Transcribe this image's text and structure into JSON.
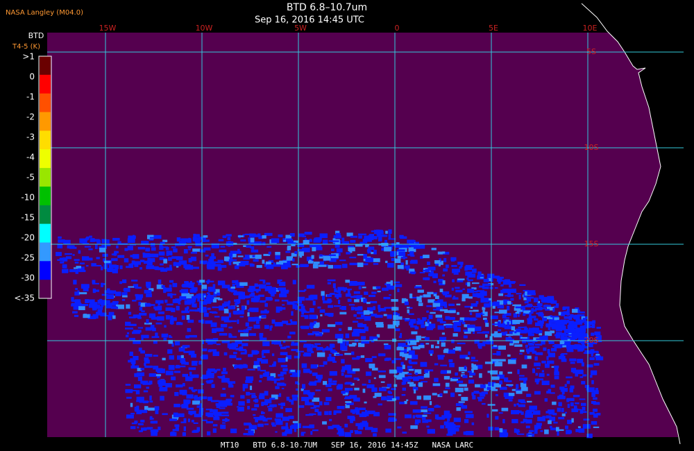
{
  "header": {
    "source": "NASA Langley (M04.0)",
    "title": "BTD 6.8–10.7um",
    "time": "Sep 16, 2016 14:45 UTC"
  },
  "colorbar": {
    "title": "BTD",
    "units": "T4-5 (K)",
    "labels": [
      ">1",
      "0",
      "-1",
      "-2",
      "-3",
      "-4",
      "-5",
      "-10",
      "-15",
      "-20",
      "-25",
      "-30",
      "<-35"
    ],
    "colors": [
      "#6a0000",
      "#ff0000",
      "#ff5000",
      "#ff9900",
      "#ffdd00",
      "#eeff00",
      "#99e600",
      "#00c000",
      "#008a40",
      "#00ffff",
      "#3399ff",
      "#0000ff",
      "#55004f"
    ]
  },
  "map": {
    "lon_labels": [
      "15W",
      "10W",
      "5W",
      "0",
      "5E",
      "10E"
    ],
    "lat_labels": [
      "5S",
      "10S",
      "15S",
      "20S"
    ]
  },
  "footer": {
    "text": "MT10   BTD 6.8-10.7UM   SEP 16, 2016 14:45Z   NASA LARC"
  }
}
